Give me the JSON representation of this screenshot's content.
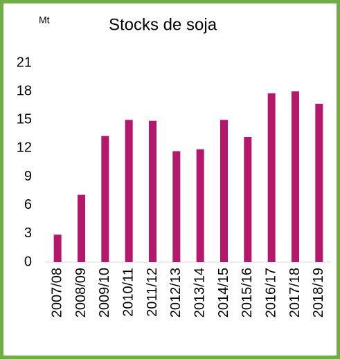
{
  "chart_data": {
    "type": "bar",
    "title": "Stocks de soja",
    "ylabel": "Mt",
    "categories": [
      "2007/08",
      "2008/09",
      "2009/10",
      "2010/11",
      "2011/12",
      "2012/13",
      "2013/14",
      "2014/15",
      "2015/16",
      "2016/17",
      "2017/18",
      "2018/19"
    ],
    "values": [
      2.9,
      7.1,
      13.3,
      15.0,
      14.9,
      11.7,
      11.9,
      15.0,
      13.2,
      17.8,
      18.0,
      16.7
    ],
    "color": "#b5176b",
    "ylim": [
      0,
      21
    ],
    "yticks": [
      0,
      3,
      6,
      9,
      12,
      15,
      18,
      21
    ],
    "grid": false
  }
}
